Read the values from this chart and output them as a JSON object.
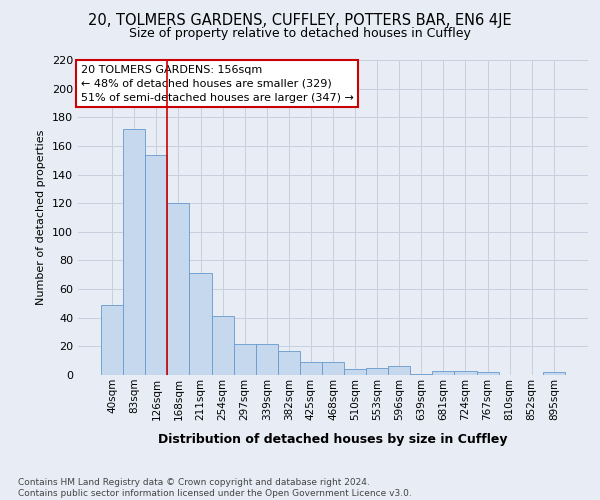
{
  "title_line1": "20, TOLMERS GARDENS, CUFFLEY, POTTERS BAR, EN6 4JE",
  "title_line2": "Size of property relative to detached houses in Cuffley",
  "xlabel": "Distribution of detached houses by size in Cuffley",
  "ylabel": "Number of detached properties",
  "categories": [
    "40sqm",
    "83sqm",
    "126sqm",
    "168sqm",
    "211sqm",
    "254sqm",
    "297sqm",
    "339sqm",
    "382sqm",
    "425sqm",
    "468sqm",
    "510sqm",
    "553sqm",
    "596sqm",
    "639sqm",
    "681sqm",
    "724sqm",
    "767sqm",
    "810sqm",
    "852sqm",
    "895sqm"
  ],
  "values": [
    49,
    172,
    154,
    120,
    71,
    41,
    22,
    22,
    17,
    9,
    9,
    4,
    5,
    6,
    1,
    3,
    3,
    2,
    0,
    0,
    2
  ],
  "bar_color": "#c5d8ed",
  "bar_edge_color": "#6699cc",
  "grid_color": "#c8d0e0",
  "background_color": "#e8edf5",
  "annotation_box_text": "20 TOLMERS GARDENS: 156sqm\n← 48% of detached houses are smaller (329)\n51% of semi-detached houses are larger (347) →",
  "vline_x": 2.5,
  "vline_color": "#cc0000",
  "footer_text": "Contains HM Land Registry data © Crown copyright and database right 2024.\nContains public sector information licensed under the Open Government Licence v3.0.",
  "ylim": [
    0,
    220
  ],
  "yticks": [
    0,
    20,
    40,
    60,
    80,
    100,
    120,
    140,
    160,
    180,
    200,
    220
  ]
}
